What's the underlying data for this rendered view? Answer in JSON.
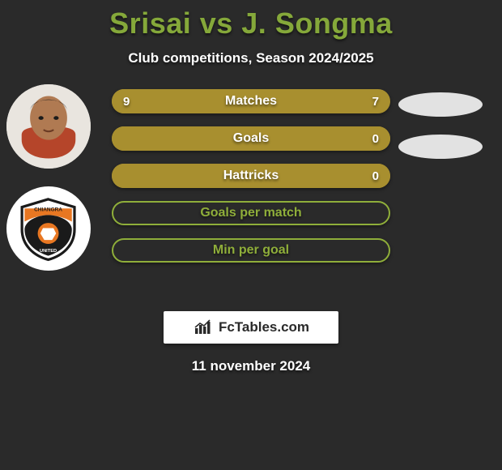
{
  "title_color": "#85a83a",
  "title": "Srisai vs J. Songma",
  "subtitle": "Club competitions, Season 2024/2025",
  "date": "11 november 2024",
  "brand": "FcTables.com",
  "background_color": "#2a2a2a",
  "bar_bg_color": "#a88f2f",
  "bar_bg_empty_color": "#a88f2f",
  "bar_outline_color": "#8fae3a",
  "rows": [
    {
      "label": "Matches",
      "left": "9",
      "right": "7",
      "left_width_pct": 56
    },
    {
      "label": "Goals",
      "left": "",
      "right": "0",
      "left_width_pct": 100
    },
    {
      "label": "Hattricks",
      "left": "",
      "right": "0",
      "left_width_pct": 100
    },
    {
      "label": "Goals per match",
      "left": "",
      "right": "",
      "left_width_pct": 0
    },
    {
      "label": "Min per goal",
      "left": "",
      "right": "",
      "left_width_pct": 0
    }
  ],
  "club_badge": {
    "shield_fill": "#ffffff",
    "shield_stroke": "#1a1a1a",
    "top_band": "#e87722",
    "text_top": "CHIANGRA",
    "text_bottom": "UNITED"
  }
}
